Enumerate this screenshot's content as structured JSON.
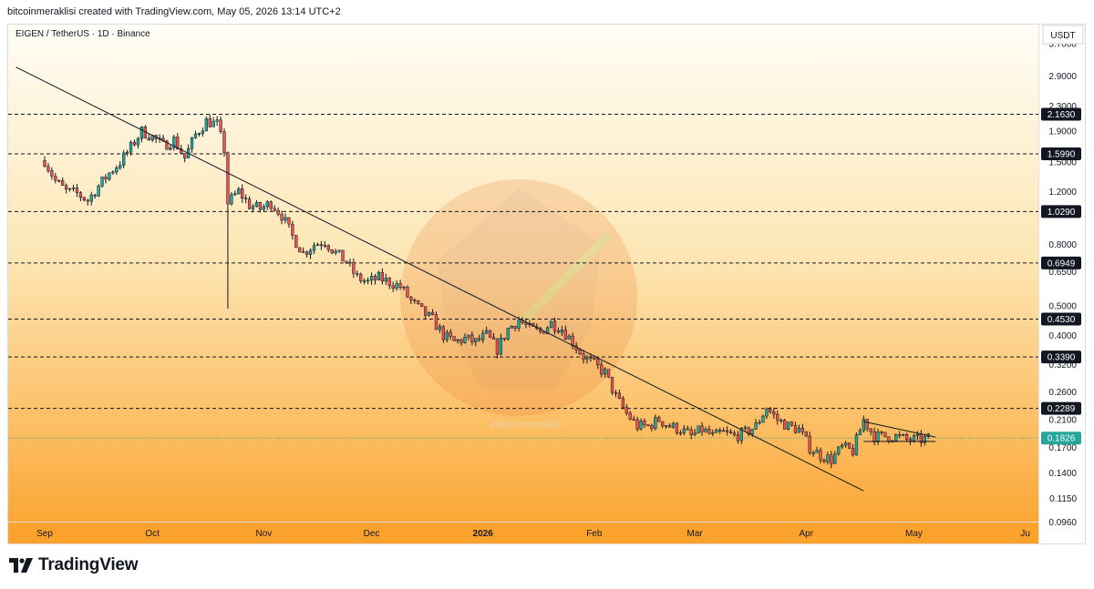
{
  "header": {
    "credit": "bitcoinmeraklisi created with TradingView.com, May 05, 2026 13:14 UTC+2"
  },
  "chart_data": {
    "type": "candlestick",
    "symbol_line": "EIGEN / TetherUS · 1D · Binance",
    "currency": "USDT",
    "scale": "log",
    "ylim": [
      0.09,
      4.0
    ],
    "y_ticks": [
      "3.7000",
      "2.9000",
      "2.3000",
      "1.9000",
      "1.5000",
      "1.2000",
      "0.8000",
      "0.6500",
      "0.5000",
      "0.4000",
      "0.3200",
      "0.2600",
      "0.2100",
      "0.1700",
      "0.1400",
      "0.1150",
      "0.0960"
    ],
    "x_ticks": [
      {
        "label": "Sep",
        "day": 0
      },
      {
        "label": "Oct",
        "day": 30
      },
      {
        "label": "Nov",
        "day": 61
      },
      {
        "label": "Dec",
        "day": 91
      },
      {
        "label": "2026",
        "day": 122,
        "bold": true
      },
      {
        "label": "Feb",
        "day": 153
      },
      {
        "label": "Mar",
        "day": 181
      },
      {
        "label": "Apr",
        "day": 212
      },
      {
        "label": "May",
        "day": 242
      },
      {
        "label": "Ju",
        "day": 273
      }
    ],
    "horizontal_levels": [
      {
        "value": 2.163,
        "label": "2.1630"
      },
      {
        "value": 1.599,
        "label": "1.5990"
      },
      {
        "value": 1.029,
        "label": "1.0290"
      },
      {
        "value": 0.6949,
        "label": "0.6949"
      },
      {
        "value": 0.453,
        "label": "0.4530"
      },
      {
        "value": 0.339,
        "label": "0.3390"
      },
      {
        "value": 0.2289,
        "label": "0.2289"
      }
    ],
    "last_price": {
      "value": 0.1826,
      "label": "0.1826",
      "color": "#26a69a"
    },
    "trendline": {
      "start": {
        "day": -8,
        "price": 3.1
      },
      "end": {
        "day": 228,
        "price": 0.122
      }
    },
    "triangle": {
      "upper": [
        {
          "day": 228,
          "price": 0.207
        },
        {
          "day": 248,
          "price": 0.184
        }
      ],
      "lower": [
        {
          "day": 228,
          "price": 0.178
        },
        {
          "day": 248,
          "price": 0.178
        }
      ]
    },
    "watermark": "@bitcoinmeraklisi",
    "up_color": "#26a69a",
    "down_color": "#ef5350",
    "closes": [
      [
        0,
        1.52
      ],
      [
        3,
        1.3
      ],
      [
        6,
        1.2
      ],
      [
        9,
        1.18
      ],
      [
        12,
        1.12
      ],
      [
        15,
        1.25
      ],
      [
        18,
        1.38
      ],
      [
        21,
        1.5
      ],
      [
        24,
        1.68
      ],
      [
        27,
        1.9
      ],
      [
        30,
        1.82
      ],
      [
        33,
        1.7
      ],
      [
        36,
        1.78
      ],
      [
        39,
        1.55
      ],
      [
        42,
        1.85
      ],
      [
        45,
        2.05
      ],
      [
        48,
        2.0
      ],
      [
        50,
        1.65
      ],
      [
        51,
        1.1
      ],
      [
        54,
        1.2
      ],
      [
        57,
        1.08
      ],
      [
        60,
        1.05
      ],
      [
        63,
        1.1
      ],
      [
        66,
        1.0
      ],
      [
        69,
        0.85
      ],
      [
        72,
        0.75
      ],
      [
        75,
        0.8
      ],
      [
        78,
        0.82
      ],
      [
        81,
        0.75
      ],
      [
        84,
        0.7
      ],
      [
        87,
        0.62
      ],
      [
        90,
        0.6
      ],
      [
        93,
        0.62
      ],
      [
        96,
        0.6
      ],
      [
        99,
        0.58
      ],
      [
        102,
        0.52
      ],
      [
        105,
        0.48
      ],
      [
        108,
        0.45
      ],
      [
        111,
        0.4
      ],
      [
        114,
        0.38
      ],
      [
        117,
        0.39
      ],
      [
        120,
        0.38
      ],
      [
        123,
        0.4
      ],
      [
        126,
        0.36
      ],
      [
        129,
        0.42
      ],
      [
        132,
        0.45
      ],
      [
        135,
        0.42
      ],
      [
        138,
        0.41
      ],
      [
        141,
        0.44
      ],
      [
        144,
        0.42
      ],
      [
        147,
        0.38
      ],
      [
        150,
        0.34
      ],
      [
        153,
        0.32
      ],
      [
        156,
        0.3
      ],
      [
        159,
        0.25
      ],
      [
        162,
        0.22
      ],
      [
        165,
        0.2
      ],
      [
        168,
        0.2
      ],
      [
        171,
        0.21
      ],
      [
        174,
        0.2
      ],
      [
        177,
        0.195
      ],
      [
        180,
        0.185
      ],
      [
        183,
        0.195
      ],
      [
        186,
        0.185
      ],
      [
        189,
        0.19
      ],
      [
        192,
        0.185
      ],
      [
        195,
        0.19
      ],
      [
        198,
        0.2
      ],
      [
        201,
        0.23
      ],
      [
        204,
        0.21
      ],
      [
        207,
        0.2
      ],
      [
        210,
        0.195
      ],
      [
        213,
        0.17
      ],
      [
        216,
        0.16
      ],
      [
        219,
        0.155
      ],
      [
        222,
        0.17
      ],
      [
        225,
        0.165
      ],
      [
        228,
        0.21
      ],
      [
        231,
        0.185
      ],
      [
        234,
        0.185
      ],
      [
        237,
        0.185
      ],
      [
        240,
        0.18
      ],
      [
        243,
        0.18
      ],
      [
        246,
        0.182
      ]
    ]
  },
  "footer": {
    "brand": "TradingView"
  }
}
